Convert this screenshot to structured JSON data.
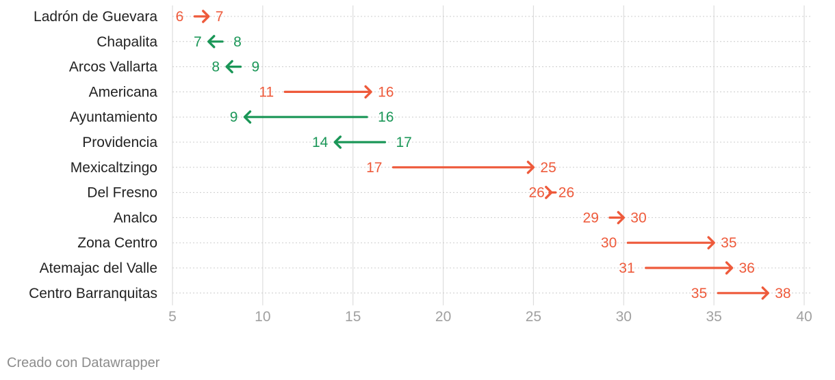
{
  "footer": {
    "credit": "Creado con Datawrapper"
  },
  "colors": {
    "increase": "#ee5a3b",
    "decrease": "#1a9657",
    "label": "#222222",
    "tick": "#a0a0a0",
    "grid": "#dddddd",
    "rowline": "#cccccc"
  },
  "chart_data": {
    "type": "arrow",
    "title": "",
    "xlim": [
      5,
      40
    ],
    "x_ticks": [
      5,
      10,
      15,
      20,
      25,
      30,
      35,
      40
    ],
    "grid": true,
    "rows": [
      {
        "name": "Ladrón de Guevara",
        "from": 6,
        "to": 7
      },
      {
        "name": "Chapalita",
        "from": 8,
        "to": 7
      },
      {
        "name": "Arcos Vallarta",
        "from": 9,
        "to": 8
      },
      {
        "name": "Americana",
        "from": 11,
        "to": 16
      },
      {
        "name": "Ayuntamiento",
        "from": 16,
        "to": 9
      },
      {
        "name": "Providencia",
        "from": 17,
        "to": 14
      },
      {
        "name": "Mexicaltzingo",
        "from": 17,
        "to": 25
      },
      {
        "name": "Del Fresno",
        "from": 26,
        "to": 26
      },
      {
        "name": "Analco",
        "from": 29,
        "to": 30
      },
      {
        "name": "Zona Centro",
        "from": 30,
        "to": 35
      },
      {
        "name": "Atemajac del Valle",
        "from": 31,
        "to": 36
      },
      {
        "name": "Centro Barranquitas",
        "from": 35,
        "to": 38
      }
    ]
  }
}
